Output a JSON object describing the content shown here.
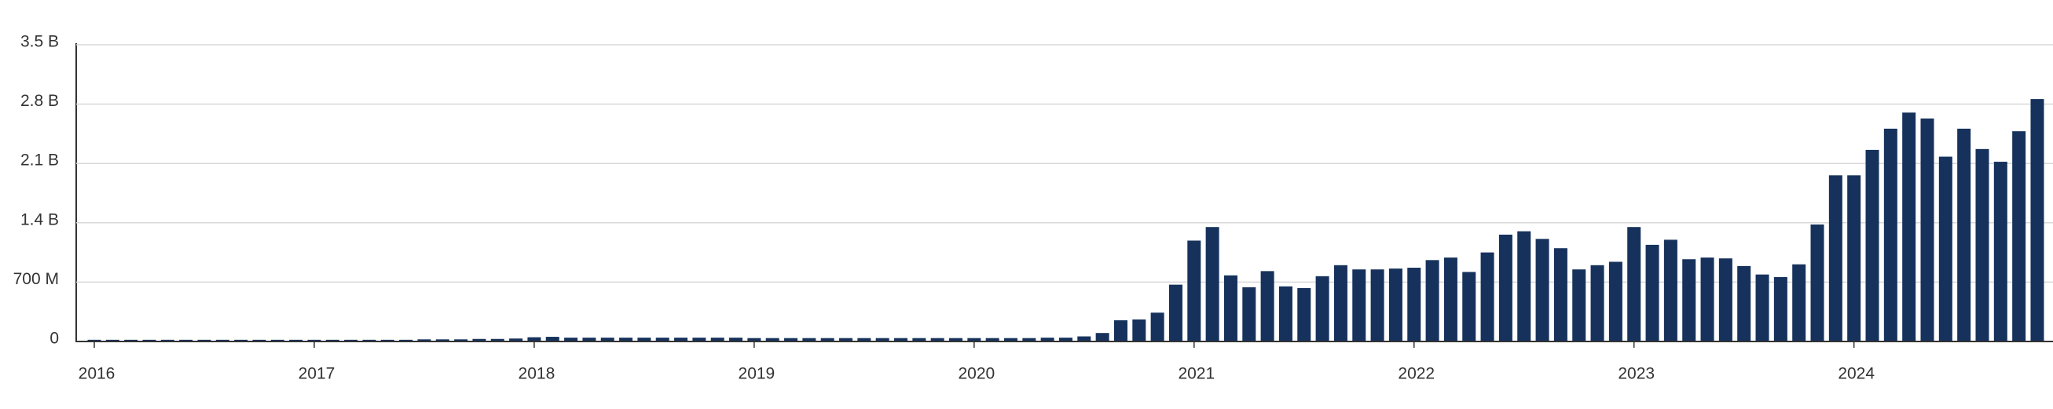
{
  "chart_data": {
    "type": "bar",
    "color": "#16325c",
    "grid": true,
    "categories": [
      "2016",
      null,
      null,
      null,
      null,
      null,
      null,
      null,
      null,
      null,
      null,
      null,
      "2017",
      null,
      null,
      null,
      null,
      null,
      null,
      null,
      null,
      null,
      null,
      null,
      "2018",
      null,
      null,
      null,
      null,
      null,
      null,
      null,
      null,
      null,
      null,
      null,
      "2019",
      null,
      null,
      null,
      null,
      null,
      null,
      null,
      null,
      null,
      null,
      null,
      "2020",
      null,
      null,
      null,
      null,
      null,
      null,
      null,
      null,
      null,
      null,
      null,
      "2021",
      null,
      null,
      null,
      null,
      null,
      null,
      null,
      null,
      null,
      null,
      null,
      "2022",
      null,
      null,
      null,
      null,
      null,
      null,
      null,
      null,
      null,
      null,
      null,
      "2023",
      null,
      null,
      null,
      null,
      null,
      null,
      null,
      null,
      null,
      null,
      null,
      "2024",
      null,
      null,
      null,
      null,
      null,
      null,
      null,
      null,
      null,
      null
    ],
    "values": [
      20000000,
      20000000,
      20000000,
      20000000,
      20000000,
      20000000,
      20000000,
      20000000,
      20000000,
      20000000,
      20000000,
      20000000,
      20000000,
      20000000,
      20000000,
      20000000,
      20000000,
      20000000,
      25000000,
      25000000,
      25000000,
      30000000,
      30000000,
      35000000,
      50000000,
      55000000,
      45000000,
      45000000,
      45000000,
      45000000,
      45000000,
      45000000,
      45000000,
      45000000,
      45000000,
      45000000,
      40000000,
      40000000,
      40000000,
      40000000,
      40000000,
      40000000,
      40000000,
      40000000,
      40000000,
      40000000,
      40000000,
      40000000,
      40000000,
      40000000,
      40000000,
      40000000,
      45000000,
      45000000,
      60000000,
      100000000,
      250000000,
      260000000,
      340000000,
      670000000,
      1190000000,
      1350000000,
      780000000,
      640000000,
      830000000,
      650000000,
      630000000,
      770000000,
      900000000,
      850000000,
      850000000,
      860000000,
      870000000,
      960000000,
      990000000,
      820000000,
      1050000000,
      1260000000,
      1300000000,
      1210000000,
      1100000000,
      850000000,
      900000000,
      940000000,
      1350000000,
      1140000000,
      1200000000,
      970000000,
      990000000,
      980000000,
      890000000,
      790000000,
      760000000,
      910000000,
      1380000000,
      1960000000,
      1960000000,
      2260000000,
      2510000000,
      2700000000,
      2630000000,
      2180000000,
      2510000000,
      2270000000,
      2120000000,
      2480000000,
      2860000000
    ],
    "ylim": [
      0,
      3500000000
    ],
    "yticks": [
      0,
      {
        "value": 700000000,
        "label": "700 M"
      },
      {
        "value": 1400000000,
        "label": "1.4 B"
      },
      {
        "value": 2100000000,
        "label": "2.1 B"
      },
      {
        "value": 2800000000,
        "label": "2.8 B"
      },
      {
        "value": 3500000000,
        "label": "3.5 B"
      }
    ]
  }
}
